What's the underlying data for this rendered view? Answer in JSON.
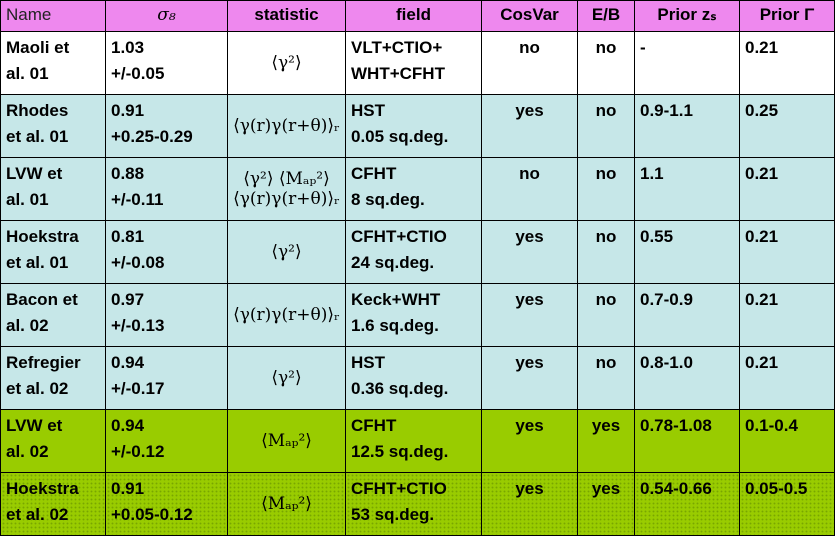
{
  "header": {
    "name": "Name",
    "sigma8": "σ₈",
    "statistic": "statistic",
    "field": "field",
    "cosvar": "CosVar",
    "eb": "E/B",
    "prior_zs": "Prior zₛ",
    "prior_gamma": "Prior Γ"
  },
  "rows": [
    {
      "name_line1": "Maoli et",
      "name_line2": "al. 01",
      "sigma_line1": "1.03",
      "sigma_line2": "+/-0.05",
      "statistic_line1": "⟨γ²⟩",
      "statistic_line2": "",
      "field_line1": "VLT+CTIO+",
      "field_line2": "WHT+CFHT",
      "cosvar": "no",
      "eb": "no",
      "prior_zs": "-",
      "prior_gamma": "0.21",
      "bg_color": "#ffffff"
    },
    {
      "name_line1": "Rhodes",
      "name_line2": "et al. 01",
      "sigma_line1": "0.91",
      "sigma_line2": "+0.25-0.29",
      "statistic_line1": "⟨γ(r)γ(r+θ)⟩ᵣ",
      "statistic_line2": "",
      "field_line1": "HST",
      "field_line2": "0.05 sq.deg.",
      "cosvar": "yes",
      "eb": "no",
      "prior_zs": "0.9-1.1",
      "prior_gamma": "0.25",
      "bg_color": "#c6e7e8"
    },
    {
      "name_line1": "LVW et",
      "name_line2": "al. 01",
      "sigma_line1": "0.88",
      "sigma_line2": "+/-0.11",
      "statistic_line1": "⟨γ²⟩  ⟨Mₐₚ²⟩",
      "statistic_line2": "⟨γ(r)γ(r+θ)⟩ᵣ",
      "field_line1": "CFHT",
      "field_line2": "8 sq.deg.",
      "cosvar": "no",
      "eb": "no",
      "prior_zs": "1.1",
      "prior_gamma": "0.21",
      "bg_color": "#c6e7e8"
    },
    {
      "name_line1": "Hoekstra",
      "name_line2": "et al. 01",
      "sigma_line1": "0.81",
      "sigma_line2": "+/-0.08",
      "statistic_line1": "⟨γ²⟩",
      "statistic_line2": "",
      "field_line1": "CFHT+CTIO",
      "field_line2": "24 sq.deg.",
      "cosvar": "yes",
      "eb": "no",
      "prior_zs": "0.55",
      "prior_gamma": "0.21",
      "bg_color": "#c6e7e8"
    },
    {
      "name_line1": "Bacon et",
      "name_line2": "al. 02",
      "sigma_line1": "0.97",
      "sigma_line2": "+/-0.13",
      "statistic_line1": "⟨γ(r)γ(r+θ)⟩ᵣ",
      "statistic_line2": "",
      "field_line1": "Keck+WHT",
      "field_line2": "1.6 sq.deg.",
      "cosvar": "yes",
      "eb": "no",
      "prior_zs": "0.7-0.9",
      "prior_gamma": "0.21",
      "bg_color": "#c6e7e8"
    },
    {
      "name_line1": "Refregier",
      "name_line2": "et al. 02",
      "sigma_line1": "0.94",
      "sigma_line2": "+/-0.17",
      "statistic_line1": "⟨γ²⟩",
      "statistic_line2": "",
      "field_line1": "HST",
      "field_line2": "0.36 sq.deg.",
      "cosvar": "yes",
      "eb": "no",
      "prior_zs": "0.8-1.0",
      "prior_gamma": "0.21",
      "bg_color": "#c6e7e8"
    },
    {
      "name_line1": "LVW et",
      "name_line2": "al. 02",
      "sigma_line1": "0.94",
      "sigma_line2": "+/-0.12",
      "statistic_line1": "⟨Mₐₚ²⟩",
      "statistic_line2": "",
      "field_line1": "CFHT",
      "field_line2": "12.5 sq.deg.",
      "cosvar": "yes",
      "eb": "yes",
      "prior_zs": "0.78-1.08",
      "prior_gamma": "0.1-0.4",
      "bg_color": "#99cc00"
    },
    {
      "name_line1": "Hoekstra",
      "name_line2": "et al. 02",
      "sigma_line1": "0.91",
      "sigma_line2": "+0.05-0.12",
      "statistic_line1": "⟨Mₐₚ²⟩",
      "statistic_line2": "",
      "field_line1": "CFHT+CTIO",
      "field_line2": "53 sq.deg.",
      "cosvar": "yes",
      "eb": "yes",
      "prior_zs": "0.54-0.66",
      "prior_gamma": "0.05-0.5",
      "bg_color": "#99cc00"
    }
  ]
}
